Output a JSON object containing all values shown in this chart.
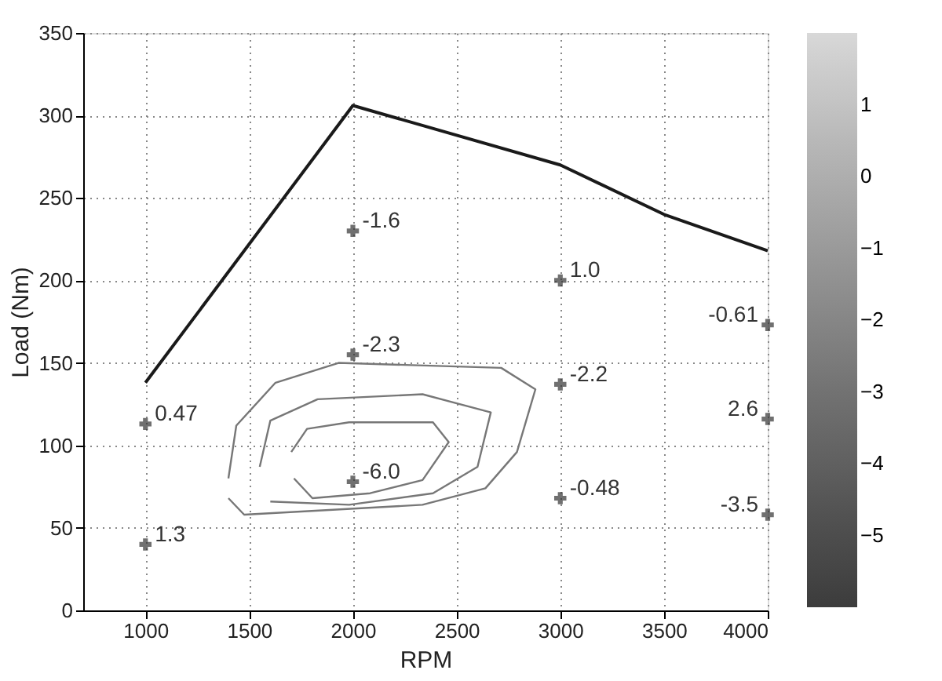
{
  "chart_data": {
    "type": "scatter",
    "xlabel": "RPM",
    "ylabel": "Load (Nm)",
    "xlim": [
      700,
      4000
    ],
    "ylim": [
      0,
      350
    ],
    "xticks": [
      1000,
      1500,
      2000,
      2500,
      3000,
      3500,
      4000
    ],
    "yticks": [
      0,
      50,
      100,
      150,
      200,
      250,
      300,
      350
    ],
    "grid": true,
    "clim": [
      -6,
      2
    ],
    "cticks": [
      -5,
      -4,
      -3,
      -2,
      -1,
      0,
      1
    ],
    "series": [
      {
        "type": "scatter",
        "marker": "cross",
        "color": "#333333",
        "x": [
          1000,
          1000,
          2000,
          2000,
          2000,
          3000,
          3000,
          3000,
          4000,
          4000,
          4000
        ],
        "values": [
          113,
          40,
          230,
          155,
          78,
          200,
          137,
          68,
          173,
          116,
          58
        ]
      },
      {
        "type": "line",
        "color": "#1a1a1a",
        "x": [
          1000,
          2000,
          3000,
          3500,
          4000
        ],
        "values": [
          138,
          306,
          270,
          240,
          218
        ]
      },
      {
        "type": "line",
        "color": "#777777",
        "x": [
          1703,
          1779,
          1982,
          2386,
          2462,
          2336,
          2083,
          1805,
          1716
        ],
        "values": [
          96,
          110,
          114,
          114,
          102,
          79,
          71,
          68,
          80
        ]
      },
      {
        "type": "line",
        "color": "#777777",
        "x": [
          1551,
          1602,
          1830,
          2336,
          2665,
          2601,
          2386,
          1982,
          1602
        ],
        "values": [
          87,
          115,
          128,
          131,
          120,
          87,
          71,
          64,
          66
        ]
      },
      {
        "type": "line",
        "color": "#777777",
        "x": [
          1400,
          1438,
          1627,
          1931,
          2715,
          2880,
          2791,
          2639,
          2336,
          1476,
          1400
        ],
        "values": [
          80,
          112,
          138,
          150,
          147,
          134,
          96,
          74,
          64,
          58,
          68
        ]
      }
    ],
    "annotations": [
      {
        "text": "0.47",
        "x": 1000,
        "y": 113
      },
      {
        "text": "1.3",
        "x": 1000,
        "y": 40
      },
      {
        "text": "-1.6",
        "x": 2000,
        "y": 230
      },
      {
        "text": "-2.3",
        "x": 2000,
        "y": 155
      },
      {
        "text": "-6.0",
        "x": 2000,
        "y": 78
      },
      {
        "text": "1.0",
        "x": 3000,
        "y": 200
      },
      {
        "text": "-2.2",
        "x": 3000,
        "y": 137
      },
      {
        "text": "-0.48",
        "x": 3000,
        "y": 68
      },
      {
        "text": "-0.61",
        "x": 4000,
        "y": 173
      },
      {
        "text": "2.6",
        "x": 4000,
        "y": 116
      },
      {
        "text": "-3.5",
        "x": 4000,
        "y": 58
      }
    ]
  }
}
